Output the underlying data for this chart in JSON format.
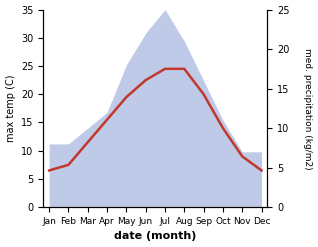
{
  "months": [
    "Jan",
    "Feb",
    "Mar",
    "Apr",
    "May",
    "Jun",
    "Jul",
    "Aug",
    "Sep",
    "Oct",
    "Nov",
    "Dec"
  ],
  "temperature": [
    6.5,
    7.5,
    11.5,
    15.5,
    19.5,
    22.5,
    24.5,
    24.5,
    20.0,
    14.0,
    9.0,
    6.5
  ],
  "precipitation": [
    8,
    8,
    10,
    12,
    18,
    22,
    25,
    21,
    16,
    11,
    7,
    7
  ],
  "temp_color": "#c0392b",
  "precip_fill_color": "#bfc9e8",
  "temp_ylim": [
    0,
    35
  ],
  "precip_ylim": [
    0,
    25
  ],
  "xlabel": "date (month)",
  "ylabel_left": "max temp (C)",
  "ylabel_right": "med. precipitation (kg/m2)",
  "background_color": "#ffffff",
  "temp_linewidth": 1.8,
  "fig_width": 3.18,
  "fig_height": 2.47
}
